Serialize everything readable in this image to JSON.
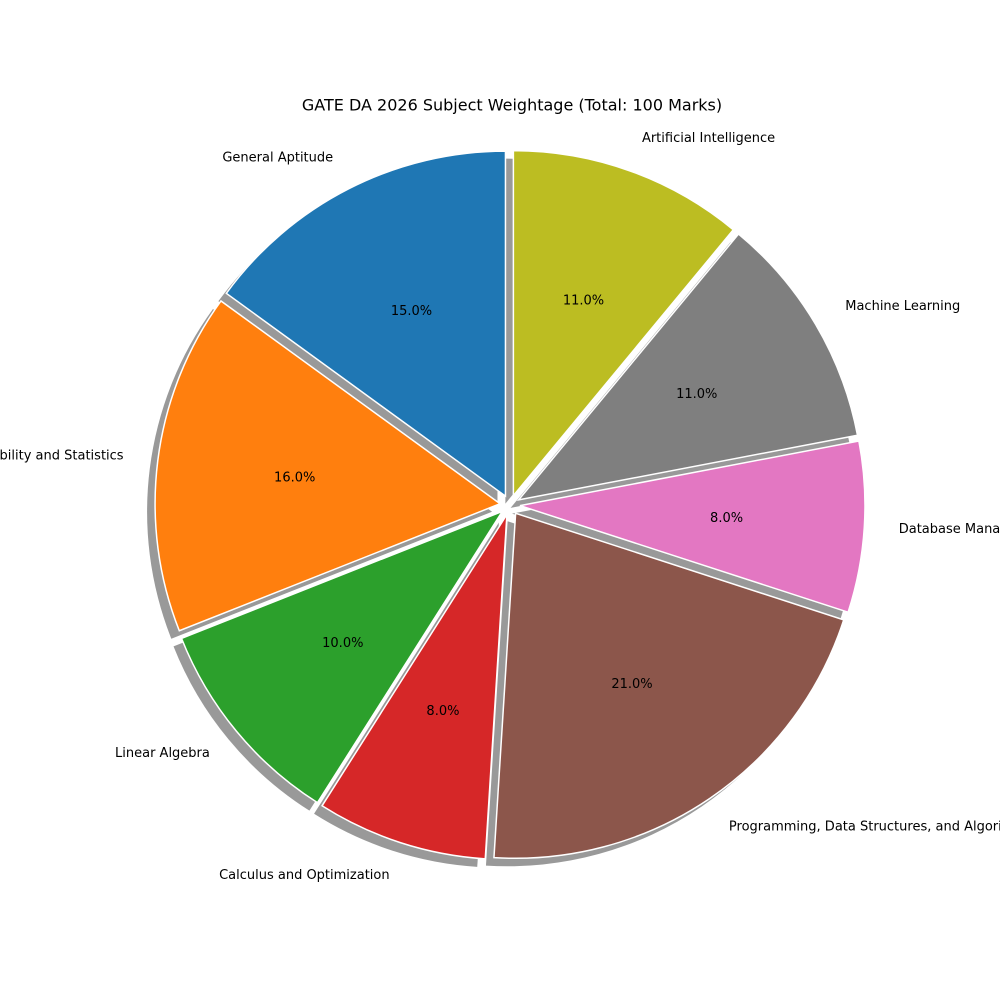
{
  "chart_data": {
    "type": "pie",
    "title": "GATE DA 2026 Subject Weightage (Total: 100 Marks)",
    "categories": [
      "General Aptitude",
      "Probability and Statistics",
      "Linear Algebra",
      "Calculus and Optimization",
      "Programming, Data Structures, and Algorithms",
      "Database Management and Warehousing",
      "Machine Learning",
      "Artificial Intelligence"
    ],
    "values": [
      15,
      16,
      10,
      8,
      21,
      8,
      11,
      11
    ],
    "value_labels": [
      "15.0%",
      "16.0%",
      "10.0%",
      "8.0%",
      "21.0%",
      "8.0%",
      "11.0%",
      "11.0%"
    ],
    "colors": [
      "#1f77b4",
      "#ff7f0e",
      "#2ca02c",
      "#d62728",
      "#8c564b",
      "#e377c2",
      "#7f7f7f",
      "#bcbd22"
    ],
    "shadow": true
  }
}
